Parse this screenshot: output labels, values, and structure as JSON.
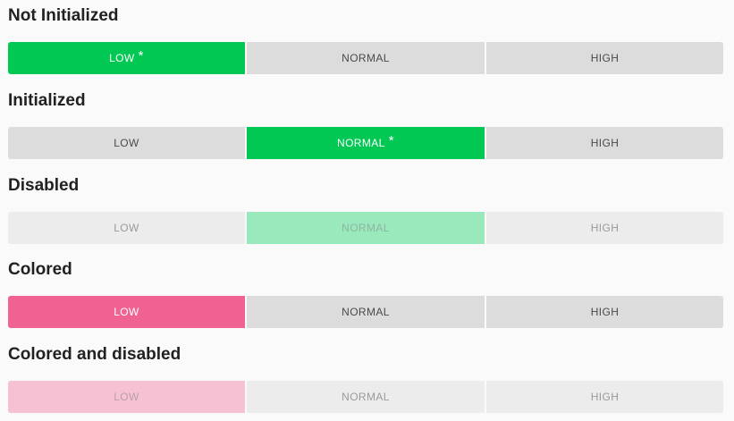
{
  "sections": [
    {
      "title": "Not Initialized",
      "options": [
        "LOW",
        "NORMAL",
        "HIGH"
      ],
      "selected_index": 0,
      "selected_marker": "*",
      "state": "enabled",
      "accent": "#00c853"
    },
    {
      "title": "Initialized",
      "options": [
        "LOW",
        "NORMAL",
        "HIGH"
      ],
      "selected_index": 1,
      "selected_marker": "*",
      "state": "enabled",
      "accent": "#00c853"
    },
    {
      "title": "Disabled",
      "options": [
        "LOW",
        "NORMAL",
        "HIGH"
      ],
      "selected_index": 1,
      "state": "disabled",
      "accent": "#9ae9bc"
    },
    {
      "title": "Colored",
      "options": [
        "LOW",
        "NORMAL",
        "HIGH"
      ],
      "selected_index": 0,
      "state": "enabled",
      "accent": "#f06292"
    },
    {
      "title": "Colored and disabled",
      "options": [
        "LOW",
        "NORMAL",
        "HIGH"
      ],
      "selected_index": 0,
      "state": "disabled",
      "accent": "#f6c1d3"
    }
  ]
}
